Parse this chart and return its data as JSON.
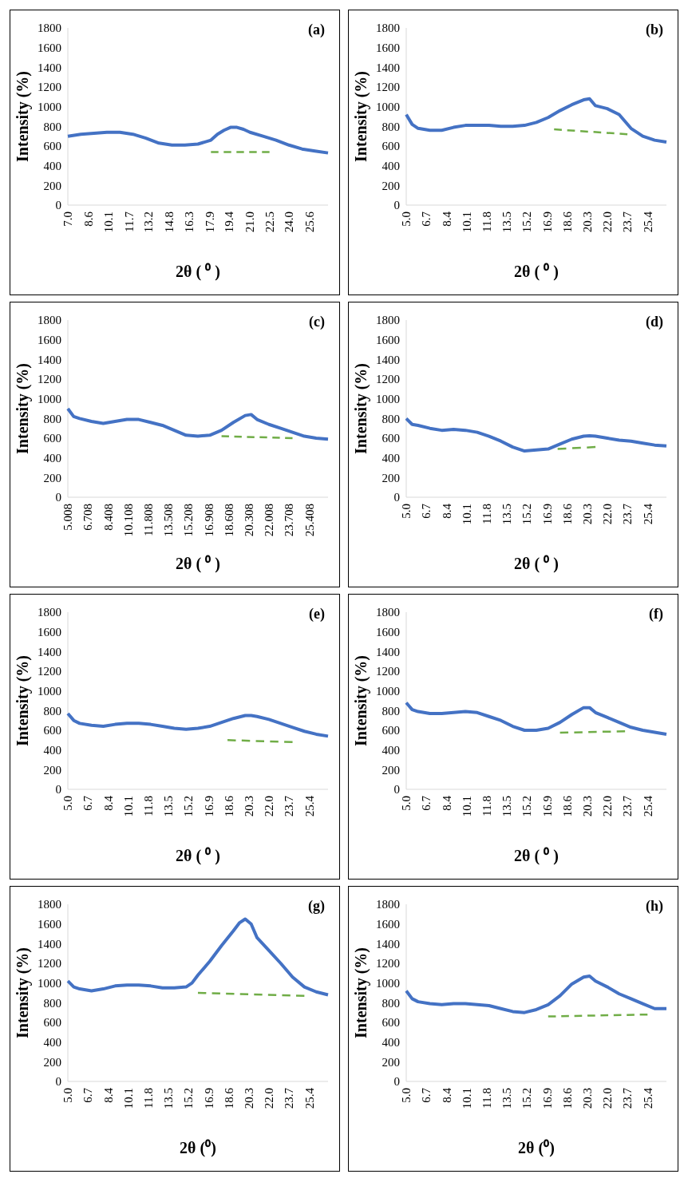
{
  "chart_data": [
    {
      "type": "line",
      "title": "(a)",
      "xlabel": "2θ ( ⁰ )",
      "ylabel": "Intensity (%)",
      "xlim": [
        7,
        27
      ],
      "ylim": [
        0,
        1800
      ],
      "yticks": [
        0,
        200,
        400,
        600,
        800,
        1000,
        1200,
        1400,
        1600,
        1800
      ],
      "xticks": [
        {
          "value": 7,
          "label": "7.0"
        },
        8.6,
        10.1,
        11.7,
        13.2,
        14.8,
        16.3,
        17.9,
        19.4,
        {
          "value": 21,
          "label": "21.0"
        },
        22.5,
        {
          "value": 24,
          "label": "24.0"
        },
        25.6
      ],
      "grid": false,
      "series": [
        {
          "color": "#4472c4",
          "x": [
            7,
            8,
            9,
            10,
            11,
            12,
            13,
            14,
            15,
            16,
            17,
            18,
            18.5,
            19,
            19.5,
            20,
            20.5,
            21,
            22,
            23,
            24,
            25,
            26,
            27
          ],
          "values": [
            700,
            720,
            730,
            740,
            740,
            720,
            680,
            630,
            610,
            610,
            620,
            660,
            720,
            760,
            790,
            790,
            770,
            740,
            700,
            660,
            610,
            570,
            550,
            530
          ]
        },
        {
          "color": "#70ad47",
          "line_style": "dashed",
          "x": [
            18,
            22.5
          ],
          "values": [
            540,
            540
          ]
        }
      ]
    },
    {
      "type": "line",
      "title": "(b)",
      "xlabel": "2θ ( ⁰ )",
      "ylabel": "Intensity (%)",
      "xlim": [
        5,
        27
      ],
      "ylim": [
        0,
        1800
      ],
      "yticks": [
        0,
        200,
        400,
        600,
        800,
        1000,
        1200,
        1400,
        1600,
        1800
      ],
      "xticks": [
        {
          "value": 5,
          "label": "5.0"
        },
        6.7,
        8.4,
        10.1,
        11.8,
        13.5,
        15.2,
        16.9,
        18.6,
        20.3,
        {
          "value": 22,
          "label": "22.0"
        },
        23.7,
        25.4
      ],
      "grid": false,
      "series": [
        {
          "color": "#4472c4",
          "x": [
            5,
            5.5,
            6,
            7,
            8,
            9,
            10,
            11,
            12,
            13,
            14,
            15,
            16,
            17,
            18,
            19,
            20,
            20.5,
            21,
            22,
            23,
            24,
            25,
            26,
            27
          ],
          "values": [
            920,
            820,
            780,
            760,
            760,
            790,
            810,
            810,
            810,
            800,
            800,
            810,
            840,
            890,
            960,
            1020,
            1070,
            1080,
            1010,
            980,
            920,
            780,
            700,
            660,
            640
          ]
        },
        {
          "color": "#70ad47",
          "line_style": "dashed",
          "x": [
            17.5,
            23.7
          ],
          "values": [
            770,
            720
          ]
        }
      ]
    },
    {
      "type": "line",
      "title": "(c)",
      "xlabel": "2θ ( ⁰ )",
      "ylabel": "Intensity (%)",
      "xlim": [
        5.008,
        27
      ],
      "ylim": [
        0,
        1800
      ],
      "yticks": [
        0,
        200,
        400,
        600,
        800,
        1000,
        1200,
        1400,
        1600,
        1800
      ],
      "xticks": [
        5.008,
        6.708,
        8.408,
        10.108,
        11.808,
        13.508,
        15.208,
        16.908,
        18.608,
        20.308,
        22.008,
        23.708,
        25.408
      ],
      "grid": false,
      "series": [
        {
          "color": "#4472c4",
          "x": [
            5.008,
            5.5,
            6,
            7,
            8,
            9,
            10,
            11,
            12,
            13,
            14,
            15,
            16,
            17,
            18,
            19,
            20,
            20.5,
            21,
            22,
            23,
            24,
            25,
            26,
            27
          ],
          "values": [
            900,
            820,
            800,
            770,
            750,
            770,
            790,
            790,
            760,
            730,
            680,
            630,
            620,
            630,
            680,
            760,
            830,
            840,
            790,
            740,
            700,
            660,
            620,
            600,
            590
          ]
        },
        {
          "color": "#70ad47",
          "line_style": "dashed",
          "x": [
            18,
            24
          ],
          "values": [
            620,
            600
          ]
        }
      ]
    },
    {
      "type": "line",
      "title": "(d)",
      "xlabel": "2θ ( ⁰ )",
      "ylabel": "Intensity (%)",
      "xlim": [
        5,
        27
      ],
      "ylim": [
        0,
        1800
      ],
      "yticks": [
        0,
        200,
        400,
        600,
        800,
        1000,
        1200,
        1400,
        1600,
        1800
      ],
      "xticks": [
        {
          "value": 5,
          "label": "5.0"
        },
        6.7,
        8.4,
        10.1,
        11.8,
        13.5,
        15.2,
        16.9,
        18.6,
        20.3,
        {
          "value": 22,
          "label": "22.0"
        },
        23.7,
        25.4
      ],
      "grid": false,
      "series": [
        {
          "color": "#4472c4",
          "x": [
            5,
            5.5,
            6,
            7,
            8,
            9,
            10,
            11,
            12,
            13,
            14,
            15,
            16,
            17,
            18,
            19,
            20,
            20.5,
            21,
            22,
            23,
            24,
            25,
            26,
            27
          ],
          "values": [
            800,
            740,
            730,
            700,
            680,
            690,
            680,
            660,
            620,
            570,
            510,
            470,
            480,
            490,
            540,
            590,
            620,
            625,
            620,
            600,
            580,
            570,
            550,
            530,
            520
          ]
        },
        {
          "color": "#70ad47",
          "line_style": "dashed",
          "x": [
            17.8,
            21
          ],
          "values": [
            490,
            510
          ]
        }
      ]
    },
    {
      "type": "line",
      "title": "(e)",
      "xlabel": "2θ ( ⁰ )",
      "ylabel": "Intensity (%)",
      "xlim": [
        5,
        27
      ],
      "ylim": [
        0,
        1800
      ],
      "yticks": [
        0,
        200,
        400,
        600,
        800,
        1000,
        1200,
        1400,
        1600,
        1800
      ],
      "xticks": [
        {
          "value": 5,
          "label": "5.0"
        },
        6.7,
        8.4,
        10.1,
        11.8,
        13.5,
        15.2,
        16.9,
        18.6,
        20.3,
        {
          "value": 22,
          "label": "22.0"
        },
        23.7,
        25.4
      ],
      "grid": false,
      "series": [
        {
          "color": "#4472c4",
          "x": [
            5,
            5.5,
            6,
            7,
            8,
            9,
            10,
            11,
            12,
            13,
            14,
            15,
            16,
            17,
            18,
            19,
            20,
            20.5,
            21,
            22,
            23,
            24,
            25,
            26,
            27
          ],
          "values": [
            770,
            700,
            670,
            650,
            640,
            660,
            670,
            670,
            660,
            640,
            620,
            610,
            620,
            640,
            680,
            720,
            750,
            750,
            740,
            710,
            670,
            630,
            590,
            560,
            540
          ]
        },
        {
          "color": "#70ad47",
          "line_style": "dashed",
          "x": [
            18.5,
            24
          ],
          "values": [
            500,
            480
          ]
        }
      ]
    },
    {
      "type": "line",
      "title": "(f)",
      "xlabel": "2θ ( ⁰ )",
      "ylabel": "Intensity (%)",
      "xlim": [
        5,
        27
      ],
      "ylim": [
        0,
        1800
      ],
      "yticks": [
        0,
        200,
        400,
        600,
        800,
        1000,
        1200,
        1400,
        1600,
        1800
      ],
      "xticks": [
        {
          "value": 5,
          "label": "5.0"
        },
        6.7,
        8.4,
        10.1,
        11.8,
        13.5,
        15.2,
        16.9,
        18.6,
        20.3,
        {
          "value": 22,
          "label": "22.0"
        },
        23.7,
        25.4
      ],
      "grid": false,
      "series": [
        {
          "color": "#4472c4",
          "x": [
            5,
            5.5,
            6,
            7,
            8,
            9,
            10,
            11,
            12,
            13,
            14,
            15,
            16,
            17,
            18,
            19,
            20,
            20.5,
            21,
            22,
            23,
            24,
            25,
            26,
            27
          ],
          "values": [
            880,
            810,
            790,
            770,
            770,
            780,
            790,
            780,
            740,
            700,
            640,
            600,
            600,
            620,
            680,
            760,
            830,
            830,
            780,
            730,
            680,
            630,
            600,
            580,
            560
          ]
        },
        {
          "color": "#70ad47",
          "line_style": "dashed",
          "x": [
            18,
            23.5
          ],
          "values": [
            575,
            590
          ]
        }
      ]
    },
    {
      "type": "line",
      "title": "(g)",
      "xlabel": "2θ (⁰)",
      "ylabel": "Intensity (%)",
      "xlim": [
        5,
        27
      ],
      "ylim": [
        0,
        1800
      ],
      "yticks": [
        0,
        200,
        400,
        600,
        800,
        1000,
        1200,
        1400,
        1600,
        1800
      ],
      "xticks": [
        {
          "value": 5,
          "label": "5.0"
        },
        6.7,
        8.4,
        10.1,
        11.8,
        13.5,
        15.2,
        16.9,
        18.6,
        20.3,
        {
          "value": 22,
          "label": "22.0"
        },
        23.7,
        25.4
      ],
      "grid": false,
      "series": [
        {
          "color": "#4472c4",
          "x": [
            5,
            5.5,
            6,
            7,
            8,
            9,
            10,
            11,
            12,
            13,
            14,
            15,
            15.5,
            16,
            17,
            18,
            19,
            19.5,
            20,
            20.5,
            21,
            22,
            23,
            24,
            25,
            26,
            27
          ],
          "values": [
            1020,
            960,
            940,
            920,
            940,
            970,
            980,
            980,
            970,
            950,
            950,
            960,
            1000,
            1080,
            1220,
            1380,
            1530,
            1610,
            1650,
            1600,
            1460,
            1330,
            1200,
            1060,
            960,
            910,
            880
          ]
        },
        {
          "color": "#70ad47",
          "line_style": "dashed",
          "x": [
            16,
            25
          ],
          "values": [
            900,
            870
          ]
        }
      ]
    },
    {
      "type": "line",
      "title": "(h)",
      "xlabel": "2θ (⁰)",
      "ylabel": "Intensity (%)",
      "xlim": [
        5,
        27
      ],
      "ylim": [
        0,
        1800
      ],
      "yticks": [
        0,
        200,
        400,
        600,
        800,
        1000,
        1200,
        1400,
        1600,
        1800
      ],
      "xticks": [
        {
          "value": 5,
          "label": "5.0"
        },
        6.7,
        8.4,
        10.1,
        11.8,
        13.5,
        15.2,
        16.9,
        18.6,
        20.3,
        {
          "value": 22,
          "label": "22.0"
        },
        23.7,
        25.4
      ],
      "grid": false,
      "series": [
        {
          "color": "#4472c4",
          "x": [
            5,
            5.5,
            6,
            7,
            8,
            9,
            10,
            11,
            12,
            13,
            14,
            15,
            16,
            17,
            18,
            19,
            20,
            20.5,
            21,
            22,
            23,
            24,
            25,
            26,
            27
          ],
          "values": [
            920,
            840,
            810,
            790,
            780,
            790,
            790,
            780,
            770,
            740,
            710,
            700,
            730,
            780,
            870,
            990,
            1060,
            1070,
            1020,
            960,
            890,
            840,
            790,
            740,
            740
          ]
        },
        {
          "color": "#70ad47",
          "line_style": "dashed",
          "x": [
            17,
            25.4
          ],
          "values": [
            660,
            680
          ]
        }
      ]
    }
  ]
}
